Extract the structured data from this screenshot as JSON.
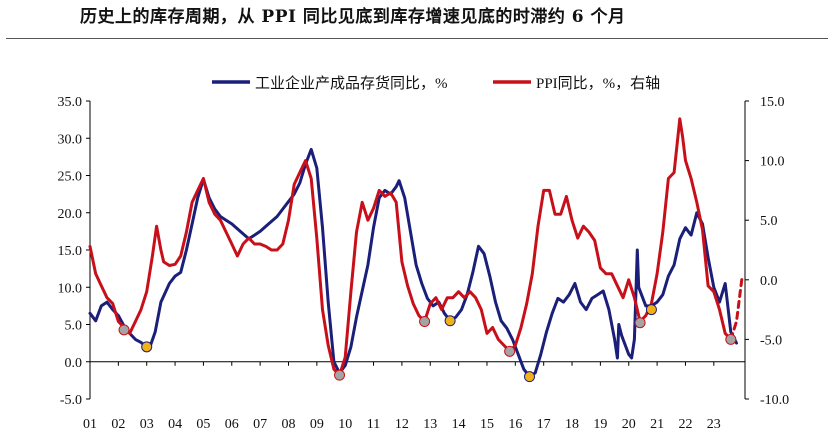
{
  "title": "历史上的库存周期，从 PPI 同比见底到库存增速见底的时滞约 6 个月",
  "colors": {
    "inventory": "#1a1f7a",
    "ppi": "#c8101a",
    "inventory_trough_marker": "#f2b118",
    "ppi_trough_marker": "#a4a4a4",
    "axis": "#000000",
    "title_rule": "#555555"
  },
  "chart_data": {
    "type": "line",
    "legend": {
      "placement": "top-center",
      "items": [
        "工业企业产成品存货同比，%",
        "PPI同比，%，右轴"
      ]
    },
    "x_tick_labels": [
      "01",
      "02",
      "03",
      "04",
      "05",
      "06",
      "07",
      "08",
      "09",
      "10",
      "11",
      "12",
      "13",
      "14",
      "15",
      "16",
      "17",
      "18",
      "19",
      "20",
      "21",
      "22",
      "23"
    ],
    "x_range": [
      2001.0,
      2024.1
    ],
    "left_axis": {
      "range": [
        -5.0,
        35.0
      ],
      "ticks": [
        "-5.0",
        "0.0",
        "5.0",
        "10.0",
        "15.0",
        "20.0",
        "25.0",
        "30.0",
        "35.0"
      ]
    },
    "right_axis": {
      "range": [
        -10.0,
        15.0
      ],
      "ticks": [
        "-10.0",
        "-5.0",
        "0.0",
        "5.0",
        "10.0",
        "15.0"
      ]
    },
    "grid": false,
    "series": [
      {
        "name": "工业企业产成品存货同比，%",
        "axis": "left",
        "style": "solid",
        "points": [
          [
            2001.0,
            6.5
          ],
          [
            2001.2,
            5.5
          ],
          [
            2001.4,
            7.5
          ],
          [
            2001.6,
            8.0
          ],
          [
            2001.8,
            7.0
          ],
          [
            2002.0,
            6.2
          ],
          [
            2002.2,
            4.8
          ],
          [
            2002.4,
            3.8
          ],
          [
            2002.6,
            3.0
          ],
          [
            2002.8,
            2.6
          ],
          [
            2003.0,
            2.0
          ],
          [
            2003.1,
            1.8
          ],
          [
            2003.3,
            4.0
          ],
          [
            2003.5,
            8.0
          ],
          [
            2003.8,
            10.5
          ],
          [
            2004.0,
            11.5
          ],
          [
            2004.2,
            12.0
          ],
          [
            2004.4,
            15.0
          ],
          [
            2004.6,
            18.5
          ],
          [
            2004.8,
            22.0
          ],
          [
            2005.0,
            24.5
          ],
          [
            2005.2,
            22.0
          ],
          [
            2005.4,
            20.5
          ],
          [
            2005.6,
            19.5
          ],
          [
            2005.8,
            19.0
          ],
          [
            2006.0,
            18.5
          ],
          [
            2006.3,
            17.5
          ],
          [
            2006.6,
            16.5
          ],
          [
            2006.8,
            17.0
          ],
          [
            2007.0,
            17.5
          ],
          [
            2007.3,
            18.5
          ],
          [
            2007.6,
            19.5
          ],
          [
            2007.8,
            20.5
          ],
          [
            2008.0,
            21.5
          ],
          [
            2008.2,
            22.5
          ],
          [
            2008.4,
            24.0
          ],
          [
            2008.6,
            26.5
          ],
          [
            2008.8,
            28.5
          ],
          [
            2009.0,
            26.0
          ],
          [
            2009.2,
            18.0
          ],
          [
            2009.4,
            8.0
          ],
          [
            2009.6,
            0.0
          ],
          [
            2009.8,
            -1.5
          ],
          [
            2010.0,
            -0.5
          ],
          [
            2010.2,
            2.0
          ],
          [
            2010.4,
            6.0
          ],
          [
            2010.6,
            9.5
          ],
          [
            2010.8,
            13.0
          ],
          [
            2011.0,
            18.0
          ],
          [
            2011.2,
            22.0
          ],
          [
            2011.4,
            23.0
          ],
          [
            2011.6,
            22.5
          ],
          [
            2011.8,
            23.5
          ],
          [
            2011.9,
            24.3
          ],
          [
            2012.1,
            22.0
          ],
          [
            2012.3,
            17.5
          ],
          [
            2012.5,
            13.0
          ],
          [
            2012.7,
            10.5
          ],
          [
            2012.9,
            8.5
          ],
          [
            2013.1,
            7.5
          ],
          [
            2013.3,
            8.0
          ],
          [
            2013.5,
            6.5
          ],
          [
            2013.7,
            5.5
          ],
          [
            2013.9,
            6.0
          ],
          [
            2014.1,
            7.0
          ],
          [
            2014.3,
            9.0
          ],
          [
            2014.5,
            12.0
          ],
          [
            2014.7,
            15.5
          ],
          [
            2014.9,
            14.5
          ],
          [
            2015.1,
            11.5
          ],
          [
            2015.3,
            8.0
          ],
          [
            2015.5,
            5.5
          ],
          [
            2015.7,
            4.5
          ],
          [
            2015.9,
            3.0
          ],
          [
            2016.1,
            1.0
          ],
          [
            2016.3,
            -1.0
          ],
          [
            2016.5,
            -2.0
          ],
          [
            2016.7,
            -1.5
          ],
          [
            2016.9,
            1.0
          ],
          [
            2017.1,
            4.0
          ],
          [
            2017.3,
            6.5
          ],
          [
            2017.5,
            8.5
          ],
          [
            2017.7,
            8.0
          ],
          [
            2017.9,
            9.0
          ],
          [
            2018.1,
            10.5
          ],
          [
            2018.3,
            8.0
          ],
          [
            2018.5,
            7.0
          ],
          [
            2018.7,
            8.5
          ],
          [
            2018.9,
            9.0
          ],
          [
            2019.1,
            9.5
          ],
          [
            2019.3,
            7.0
          ],
          [
            2019.5,
            3.0
          ],
          [
            2019.6,
            0.5
          ],
          [
            2019.65,
            5.0
          ],
          [
            2019.75,
            3.5
          ],
          [
            2019.9,
            2.0
          ],
          [
            2020.0,
            1.0
          ],
          [
            2020.1,
            0.5
          ],
          [
            2020.2,
            3.0
          ],
          [
            2020.3,
            15.0
          ],
          [
            2020.35,
            10.0
          ],
          [
            2020.45,
            9.0
          ],
          [
            2020.6,
            7.5
          ],
          [
            2020.8,
            7.5
          ],
          [
            2021.0,
            8.0
          ],
          [
            2021.2,
            9.0
          ],
          [
            2021.4,
            11.5
          ],
          [
            2021.6,
            13.0
          ],
          [
            2021.8,
            16.5
          ],
          [
            2022.0,
            18.0
          ],
          [
            2022.2,
            17.0
          ],
          [
            2022.4,
            20.0
          ],
          [
            2022.6,
            18.5
          ],
          [
            2022.8,
            14.0
          ],
          [
            2023.0,
            10.0
          ],
          [
            2023.2,
            8.0
          ],
          [
            2023.4,
            10.5
          ],
          [
            2023.6,
            4.0
          ],
          [
            2023.8,
            2.5
          ]
        ]
      },
      {
        "name": "PPI同比，%，右轴",
        "axis": "right",
        "style": "solid",
        "points": [
          [
            2001.0,
            2.8
          ],
          [
            2001.2,
            0.5
          ],
          [
            2001.4,
            -0.5
          ],
          [
            2001.6,
            -1.5
          ],
          [
            2001.8,
            -2.0
          ],
          [
            2002.0,
            -3.5
          ],
          [
            2002.2,
            -4.0
          ],
          [
            2002.4,
            -4.5
          ],
          [
            2002.6,
            -3.5
          ],
          [
            2002.8,
            -2.5
          ],
          [
            2003.0,
            -1.0
          ],
          [
            2003.2,
            2.0
          ],
          [
            2003.35,
            4.5
          ],
          [
            2003.5,
            2.5
          ],
          [
            2003.6,
            1.5
          ],
          [
            2003.8,
            1.2
          ],
          [
            2004.0,
            1.3
          ],
          [
            2004.2,
            2.0
          ],
          [
            2004.4,
            4.0
          ],
          [
            2004.6,
            6.5
          ],
          [
            2004.8,
            7.5
          ],
          [
            2005.0,
            8.5
          ],
          [
            2005.2,
            6.5
          ],
          [
            2005.4,
            5.5
          ],
          [
            2005.6,
            5.0
          ],
          [
            2005.8,
            4.0
          ],
          [
            2006.0,
            3.0
          ],
          [
            2006.2,
            2.0
          ],
          [
            2006.4,
            3.0
          ],
          [
            2006.6,
            3.5
          ],
          [
            2006.8,
            3.0
          ],
          [
            2007.0,
            3.0
          ],
          [
            2007.2,
            2.8
          ],
          [
            2007.4,
            2.5
          ],
          [
            2007.6,
            2.5
          ],
          [
            2007.8,
            3.0
          ],
          [
            2008.0,
            5.0
          ],
          [
            2008.2,
            8.0
          ],
          [
            2008.4,
            9.0
          ],
          [
            2008.6,
            10.0
          ],
          [
            2008.8,
            8.5
          ],
          [
            2009.0,
            3.5
          ],
          [
            2009.2,
            -2.5
          ],
          [
            2009.4,
            -5.5
          ],
          [
            2009.6,
            -7.5
          ],
          [
            2009.8,
            -8.0
          ],
          [
            2010.0,
            -6.5
          ],
          [
            2010.2,
            -1.0
          ],
          [
            2010.4,
            4.0
          ],
          [
            2010.6,
            6.5
          ],
          [
            2010.8,
            5.0
          ],
          [
            2011.0,
            6.0
          ],
          [
            2011.2,
            7.5
          ],
          [
            2011.4,
            7.0
          ],
          [
            2011.6,
            7.3
          ],
          [
            2011.8,
            6.5
          ],
          [
            2012.0,
            1.5
          ],
          [
            2012.2,
            -0.5
          ],
          [
            2012.4,
            -2.0
          ],
          [
            2012.6,
            -3.0
          ],
          [
            2012.8,
            -3.5
          ],
          [
            2013.0,
            -2.0
          ],
          [
            2013.2,
            -1.5
          ],
          [
            2013.4,
            -2.5
          ],
          [
            2013.6,
            -1.5
          ],
          [
            2013.8,
            -1.5
          ],
          [
            2014.0,
            -1.0
          ],
          [
            2014.2,
            -1.5
          ],
          [
            2014.4,
            -1.0
          ],
          [
            2014.6,
            -1.5
          ],
          [
            2014.8,
            -2.5
          ],
          [
            2015.0,
            -4.5
          ],
          [
            2015.2,
            -4.0
          ],
          [
            2015.4,
            -5.0
          ],
          [
            2015.6,
            -5.5
          ],
          [
            2015.8,
            -6.0
          ],
          [
            2016.0,
            -5.5
          ],
          [
            2016.2,
            -4.0
          ],
          [
            2016.4,
            -2.0
          ],
          [
            2016.6,
            0.5
          ],
          [
            2016.8,
            4.5
          ],
          [
            2017.0,
            7.5
          ],
          [
            2017.2,
            7.5
          ],
          [
            2017.4,
            5.5
          ],
          [
            2017.6,
            5.5
          ],
          [
            2017.8,
            7.0
          ],
          [
            2018.0,
            5.0
          ],
          [
            2018.2,
            3.5
          ],
          [
            2018.4,
            4.5
          ],
          [
            2018.6,
            4.0
          ],
          [
            2018.8,
            3.3
          ],
          [
            2019.0,
            1.0
          ],
          [
            2019.2,
            0.5
          ],
          [
            2019.4,
            0.5
          ],
          [
            2019.6,
            -0.5
          ],
          [
            2019.8,
            -1.5
          ],
          [
            2020.0,
            0.0
          ],
          [
            2020.2,
            -1.5
          ],
          [
            2020.4,
            -3.5
          ],
          [
            2020.6,
            -3.0
          ],
          [
            2020.8,
            -2.0
          ],
          [
            2021.0,
            0.5
          ],
          [
            2021.2,
            4.0
          ],
          [
            2021.4,
            8.5
          ],
          [
            2021.6,
            9.0
          ],
          [
            2021.8,
            13.5
          ],
          [
            2021.9,
            12.0
          ],
          [
            2022.0,
            10.0
          ],
          [
            2022.2,
            8.5
          ],
          [
            2022.4,
            6.5
          ],
          [
            2022.6,
            4.2
          ],
          [
            2022.8,
            -0.5
          ],
          [
            2023.0,
            -1.0
          ],
          [
            2023.2,
            -2.5
          ],
          [
            2023.4,
            -4.5
          ],
          [
            2023.6,
            -5.0
          ]
        ]
      },
      {
        "name": "",
        "axis": "right",
        "style": "dashed",
        "points": [
          [
            2023.6,
            -5.0
          ],
          [
            2023.8,
            -3.5
          ],
          [
            2024.0,
            0.3
          ]
        ]
      }
    ],
    "trough_markers": {
      "inventory": [
        [
          2003.0,
          2.0
        ],
        [
          2013.7,
          5.5
        ],
        [
          2016.5,
          -2.0
        ],
        [
          2020.8,
          7.0
        ]
      ],
      "ppi": [
        [
          2002.2,
          -4.2
        ],
        [
          2009.8,
          -8.0
        ],
        [
          2012.8,
          -3.5
        ],
        [
          2015.8,
          -6.0
        ],
        [
          2020.4,
          -3.6
        ],
        [
          2023.6,
          -5.0
        ]
      ]
    }
  }
}
